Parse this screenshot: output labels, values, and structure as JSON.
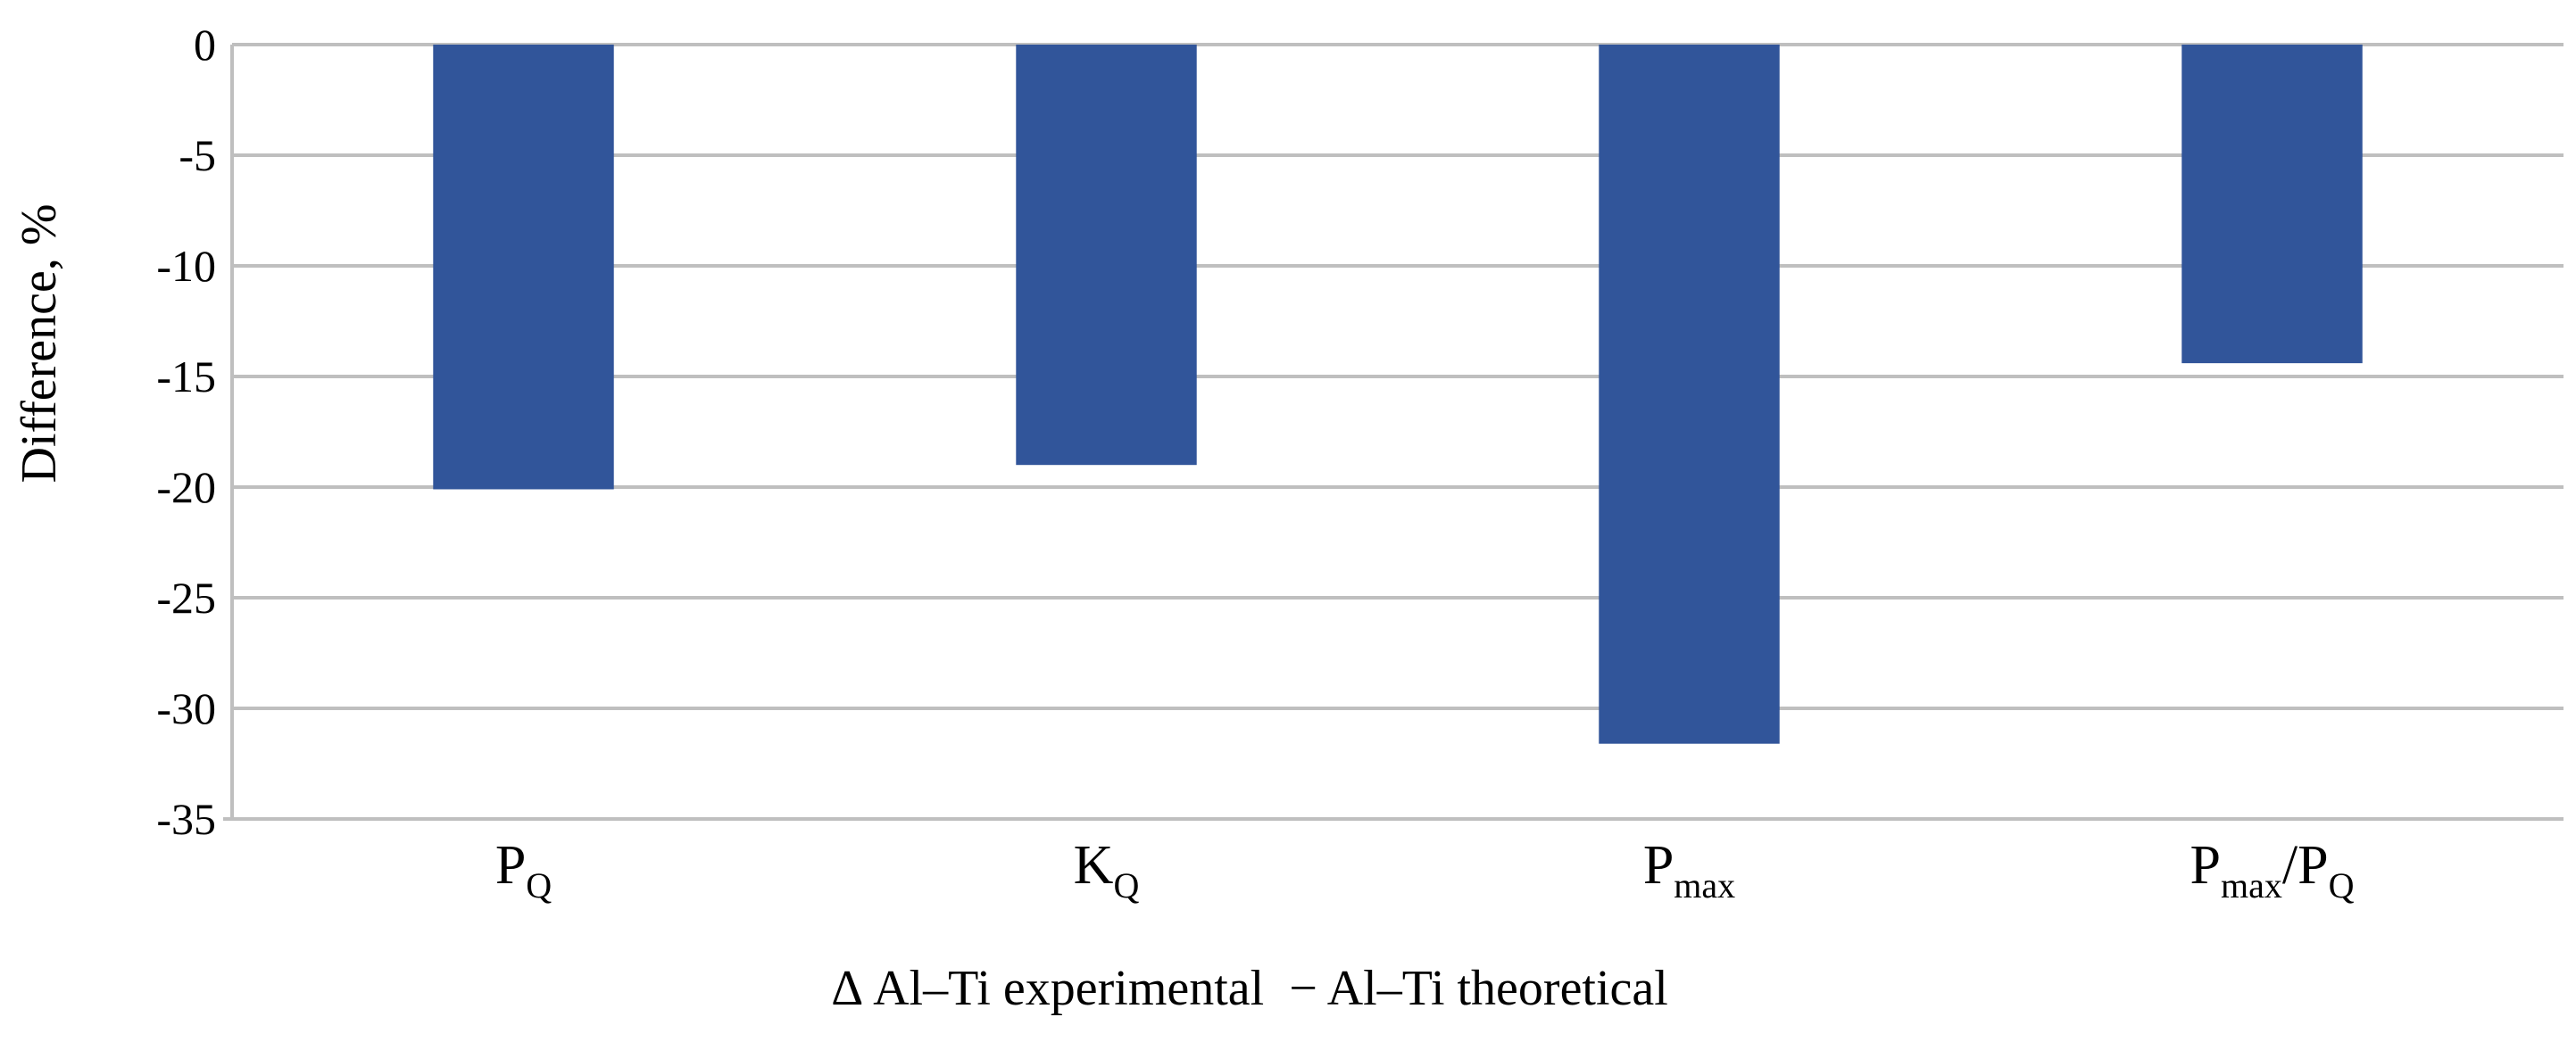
{
  "chart_data": {
    "type": "bar",
    "categories": [
      {
        "base": "P",
        "sub": "Q",
        "tail": ""
      },
      {
        "base": "K",
        "sub": "Q",
        "tail": ""
      },
      {
        "base": "P",
        "sub": "max",
        "tail": ""
      },
      {
        "base": "P",
        "sub": "max",
        "tail": "/P",
        "sub2": "Q"
      }
    ],
    "values": [
      -20.1,
      -19.0,
      -31.6,
      -14.4
    ],
    "ylabel": "Difference, %",
    "xlabel": "Δ Al–Ti experimental  − Al–Ti theoretical",
    "ylim": [
      -35,
      0
    ],
    "yticks": [
      0,
      -5,
      -10,
      -15,
      -20,
      -25,
      -30,
      -35
    ],
    "ytick_labels": [
      "0",
      "-5",
      "-10",
      "-15",
      "-20",
      "-25",
      "-30",
      "-35"
    ],
    "grid": true,
    "bar_color": "#31559a",
    "grid_color": "#bfbfbf"
  }
}
